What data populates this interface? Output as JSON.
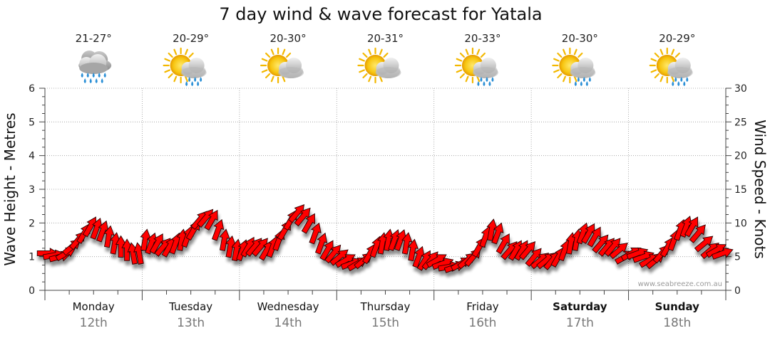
{
  "chart_data": {
    "type": "line",
    "title": "7 day wind & wave forecast for Yatala",
    "ylabel_left": "Wave Height - Metres",
    "ylabel_right": "Wind Speed - Knots",
    "ylim_left": [
      0,
      6
    ],
    "ylim_right": [
      0,
      30
    ],
    "left_ticks": [
      "0",
      "1",
      "2",
      "3",
      "4",
      "5",
      "6"
    ],
    "right_ticks": [
      "0",
      "5",
      "10",
      "15",
      "20",
      "25",
      "30"
    ],
    "grid": true,
    "watermark": "www.seabreeze.com.au",
    "days": [
      {
        "name": "Monday",
        "date": "12th",
        "temp": "21-27°",
        "icon": "rain-cloud-icon",
        "bold": false
      },
      {
        "name": "Tuesday",
        "date": "13th",
        "temp": "20-29°",
        "icon": "sun-cloud-rain-icon",
        "bold": false
      },
      {
        "name": "Wednesday",
        "date": "14th",
        "temp": "20-30°",
        "icon": "sun-cloud-icon",
        "bold": false
      },
      {
        "name": "Thursday",
        "date": "15th",
        "temp": "20-31°",
        "icon": "sun-cloud-icon",
        "bold": false
      },
      {
        "name": "Friday",
        "date": "16th",
        "temp": "20-33°",
        "icon": "sun-cloud-rain-icon",
        "bold": false
      },
      {
        "name": "Saturday",
        "date": "17th",
        "temp": "20-30°",
        "icon": "sun-cloud-rain-icon",
        "bold": true
      },
      {
        "name": "Sunday",
        "date": "18th",
        "temp": "20-29°",
        "icon": "sun-cloud-rain-icon",
        "bold": true
      }
    ],
    "series": [
      {
        "name": "Wind Speed",
        "color": "#ff0000",
        "values_knots": [
          5.5,
          5.2,
          5.0,
          5.5,
          6.5,
          7.5,
          8.5,
          9.5,
          9.2,
          8.8,
          8.0,
          7.0,
          6.5,
          6.0,
          5.5,
          5.5,
          7.5,
          7.0,
          7.0,
          6.5,
          6.5,
          7.0,
          7.5,
          8.0,
          9.0,
          10.5,
          10.8,
          10.5,
          9.0,
          7.5,
          6.5,
          6.0,
          6.0,
          6.5,
          6.5,
          6.5,
          6.0,
          6.5,
          7.5,
          9.0,
          10.5,
          11.5,
          11.0,
          10.0,
          8.5,
          7.0,
          6.0,
          5.5,
          5.0,
          4.5,
          4.0,
          4.0,
          4.5,
          5.5,
          6.5,
          7.0,
          7.5,
          7.5,
          7.5,
          7.0,
          6.0,
          5.0,
          4.5,
          4.5,
          4.5,
          4.0,
          3.5,
          3.5,
          4.0,
          4.5,
          5.0,
          6.5,
          8.0,
          9.0,
          8.5,
          7.0,
          6.0,
          6.0,
          6.0,
          6.0,
          5.0,
          4.5,
          4.5,
          4.5,
          5.0,
          6.0,
          7.0,
          7.5,
          8.5,
          8.5,
          8.0,
          7.0,
          6.5,
          6.5,
          6.0,
          5.0,
          5.5,
          5.5,
          5.0,
          4.5,
          4.5,
          5.5,
          6.5,
          7.5,
          9.0,
          9.5,
          9.5,
          8.5,
          7.0,
          6.0,
          6.0,
          5.5
        ],
        "directions_deg": [
          180,
          170,
          165,
          150,
          140,
          130,
          120,
          120,
          110,
          110,
          100,
          100,
          90,
          90,
          80,
          80,
          100,
          110,
          120,
          130,
          120,
          110,
          100,
          110,
          120,
          130,
          130,
          120,
          110,
          100,
          100,
          100,
          110,
          120,
          130,
          130,
          120,
          110,
          110,
          120,
          120,
          130,
          130,
          120,
          110,
          110,
          120,
          130,
          140,
          150,
          160,
          150,
          140,
          120,
          110,
          100,
          100,
          110,
          110,
          100,
          100,
          110,
          120,
          130,
          150,
          160,
          170,
          160,
          150,
          140,
          130,
          120,
          110,
          100,
          110,
          120,
          130,
          120,
          120,
          130,
          130,
          140,
          140,
          130,
          120,
          110,
          100,
          100,
          110,
          120,
          120,
          130,
          130,
          130,
          140,
          150,
          150,
          160,
          160,
          150,
          140,
          130,
          120,
          110,
          110,
          110,
          120,
          130,
          140,
          140,
          150,
          160
        ]
      }
    ]
  }
}
